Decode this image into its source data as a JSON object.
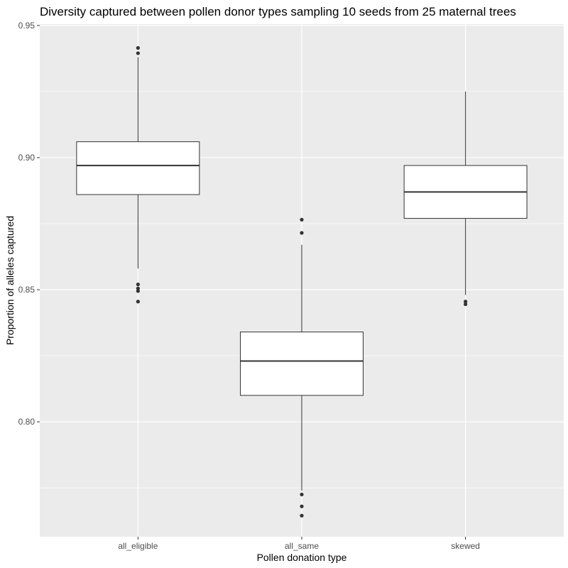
{
  "chart_data": {
    "type": "boxplot",
    "title": "Diversity captured between pollen donor types sampling 10 seeds from 25 maternal trees",
    "xlabel": "Pollen donation type",
    "ylabel": "Proportion of alleles captured",
    "categories": [
      "all_eligible",
      "all_same",
      "skewed"
    ],
    "ylim": [
      0.7565,
      0.9505
    ],
    "y_ticks": [
      0.8,
      0.85,
      0.9,
      0.95
    ],
    "y_tick_labels": [
      "0.80",
      "0.85",
      "0.90",
      "0.95"
    ],
    "grid": true,
    "boxes": [
      {
        "category": "all_eligible",
        "lower_whisker": 0.858,
        "q1": 0.886,
        "median": 0.897,
        "q3": 0.906,
        "upper_whisker": 0.938,
        "outliers": [
          0.9415,
          0.9395,
          0.852,
          0.8505,
          0.8495,
          0.8455
        ]
      },
      {
        "category": "all_same",
        "lower_whisker": 0.774,
        "q1": 0.81,
        "median": 0.823,
        "q3": 0.834,
        "upper_whisker": 0.867,
        "outliers": [
          0.8765,
          0.8715,
          0.7725,
          0.768,
          0.7645
        ]
      },
      {
        "category": "skewed",
        "lower_whisker": 0.848,
        "q1": 0.877,
        "median": 0.887,
        "q3": 0.897,
        "upper_whisker": 0.925,
        "outliers": [
          0.8455,
          0.8445
        ]
      }
    ],
    "colors": {
      "panel": "#ebebeb",
      "grid": "#ffffff",
      "box_fill": "#ffffff",
      "box_line": "#333333",
      "outlier": "#333333"
    }
  }
}
